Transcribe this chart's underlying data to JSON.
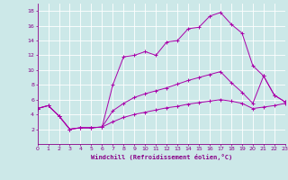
{
  "xlabel": "Windchill (Refroidissement éolien,°C)",
  "background_color": "#cce8e8",
  "grid_color": "#ffffff",
  "line_color": "#aa00aa",
  "xmin": 0,
  "xmax": 23,
  "ymin": 0,
  "ymax": 19,
  "ytick_labels": [
    "2",
    "4",
    "6",
    "8",
    "10",
    "12",
    "14",
    "16",
    "18"
  ],
  "ytick_vals": [
    2,
    4,
    6,
    8,
    10,
    12,
    14,
    16,
    18
  ],
  "xtick_vals": [
    0,
    1,
    2,
    3,
    4,
    5,
    6,
    7,
    8,
    9,
    10,
    11,
    12,
    13,
    14,
    15,
    16,
    17,
    18,
    19,
    20,
    21,
    22,
    23
  ],
  "line1_x": [
    0,
    1,
    2,
    3,
    4,
    5,
    6,
    7,
    8,
    9,
    10,
    11,
    12,
    13,
    14,
    15,
    16,
    17,
    18,
    19,
    20,
    21,
    22,
    23
  ],
  "line1_y": [
    4.8,
    5.2,
    3.8,
    2.0,
    2.2,
    2.2,
    2.3,
    8.0,
    11.8,
    12.0,
    12.5,
    12.0,
    13.8,
    14.0,
    15.6,
    15.8,
    17.3,
    17.8,
    16.2,
    15.0,
    10.6,
    9.2,
    6.6,
    5.7
  ],
  "line2_x": [
    0,
    1,
    2,
    3,
    4,
    5,
    6,
    7,
    8,
    9,
    10,
    11,
    12,
    13,
    14,
    15,
    16,
    17,
    18,
    19,
    20,
    21,
    22,
    23
  ],
  "line2_y": [
    4.8,
    5.2,
    3.8,
    2.0,
    2.2,
    2.2,
    2.3,
    4.5,
    5.5,
    6.3,
    6.8,
    7.2,
    7.6,
    8.1,
    8.6,
    9.0,
    9.4,
    9.8,
    8.3,
    7.0,
    5.5,
    9.2,
    6.6,
    5.7
  ],
  "line3_x": [
    0,
    1,
    2,
    3,
    4,
    5,
    6,
    7,
    8,
    9,
    10,
    11,
    12,
    13,
    14,
    15,
    16,
    17,
    18,
    19,
    20,
    21,
    22,
    23
  ],
  "line3_y": [
    4.8,
    5.2,
    3.8,
    2.0,
    2.2,
    2.2,
    2.3,
    3.0,
    3.6,
    4.0,
    4.3,
    4.6,
    4.9,
    5.1,
    5.4,
    5.6,
    5.8,
    6.0,
    5.8,
    5.5,
    4.8,
    5.0,
    5.2,
    5.5
  ]
}
